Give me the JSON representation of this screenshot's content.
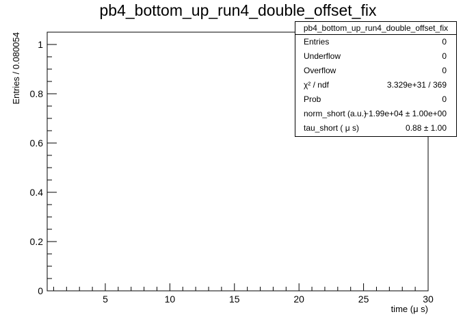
{
  "chart_data": {
    "type": "histogram",
    "title": "pb4_bottom_up_run4_double_offset_fix",
    "xlabel": "time (μ s)",
    "ylabel": "Entries / 0.080054",
    "xlim": [
      0.5,
      30
    ],
    "ylim": [
      0,
      1.05
    ],
    "x_ticks": [
      5,
      10,
      15,
      20,
      25,
      30
    ],
    "y_ticks": [
      0,
      0.2,
      0.4,
      0.6,
      0.8,
      1
    ],
    "series": [],
    "grid": false,
    "stats_box": {
      "title": "pb4_bottom_up_run4_double_offset_fix",
      "rows": [
        {
          "label": "Entries",
          "value": "0"
        },
        {
          "label": "Underflow",
          "value": "0"
        },
        {
          "label": "Overflow",
          "value": "0"
        },
        {
          "label": "χ² / ndf",
          "value": "3.329e+31 / 369"
        },
        {
          "label": "Prob",
          "value": "0"
        },
        {
          "label": "norm_short (a.u.)",
          "value": "−1.99e+04  ± 1.00e+00"
        },
        {
          "label": "tau_short ( μ s)",
          "value": "0.88  ± 1.00"
        }
      ]
    }
  }
}
